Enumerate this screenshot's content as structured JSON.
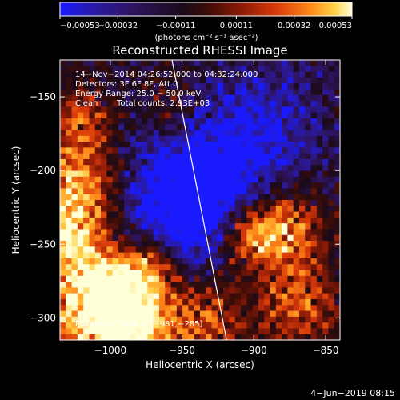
{
  "chart_data": {
    "type": "heatmap",
    "title": "Reconstructed RHESSI Image",
    "xlabel": "Heliocentric X (arcsec)",
    "ylabel": "Heliocentric Y (arcsec)",
    "xlim": [
      -1035,
      -840
    ],
    "ylim": [
      -315,
      -125
    ],
    "xticks": [
      -1000,
      -950,
      -900,
      -850
    ],
    "yticks": [
      -300,
      -250,
      -200,
      -150
    ],
    "xtick_labels": [
      "−1000",
      "−950",
      "−900",
      "−850"
    ],
    "ytick_labels": [
      "−300",
      "−250",
      "−200",
      "−150"
    ],
    "colorbar": {
      "range": [
        -0.00053,
        0.00053
      ],
      "ticks": [
        -0.00053,
        -0.00032,
        -0.00011,
        0.00011,
        0.00032,
        0.00053
      ],
      "tick_labels": [
        "−0.00053",
        "−0.00032",
        "−0.00011",
        "0.00011",
        "0.00032",
        "0.00053"
      ],
      "unit_label": "(photons cm⁻² s⁻¹ asec⁻²)"
    },
    "annotations": {
      "time_range": "14−Nov−2014 04:26:52.000 to 04:32:24.000",
      "detectors": "Detectors: 3F 6F 8F, Att 0",
      "energy_range": "Energy Range: 25.0 − 50.0 keV",
      "method": "Clean",
      "total_counts": "Total counts: 2.93E+03",
      "peak": "Position of Peak = [−981,−285]"
    },
    "limb_line": {
      "x": [
        -957,
        -919
      ],
      "y": [
        -125,
        -315
      ]
    },
    "peak": {
      "x": -981,
      "y": -285
    },
    "colors": {
      "scale": [
        "#1a1aff",
        "#2a1aa0",
        "#2e145a",
        "#1a0a1a",
        "#3a0d08",
        "#8a1a08",
        "#d83a0a",
        "#ff8a1a",
        "#ffd24a",
        "#ffffd8"
      ],
      "background": "#000000",
      "text": "#ffffff"
    }
  },
  "footer": {
    "date": "4−Jun−2019 08:15"
  }
}
